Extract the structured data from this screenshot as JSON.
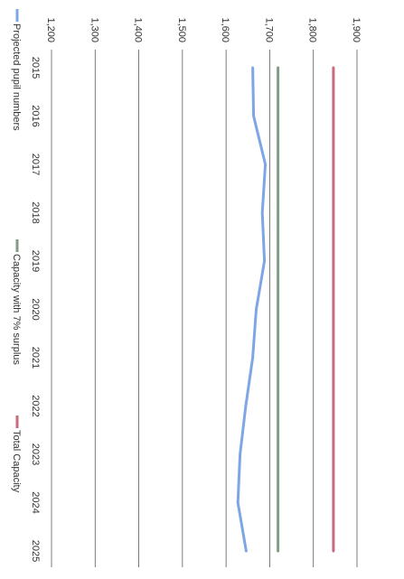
{
  "chart_data": {
    "type": "line",
    "orientation": "rotated-90-clockwise",
    "x": [
      "2015",
      "2016",
      "2017",
      "2018",
      "2019",
      "2020",
      "2021",
      "2022",
      "2023",
      "2024",
      "2025"
    ],
    "y_ticks": [
      "1,200",
      "1,300",
      "1,400",
      "1,500",
      "1,600",
      "1,700",
      "1,800",
      "1,900"
    ],
    "ylim": [
      1200,
      1900
    ],
    "grid": true,
    "legend_position": "bottom",
    "series": [
      {
        "name": "Projected pupil numbers",
        "color": "#7ea6e6",
        "values": [
          1661,
          1663,
          1690,
          1683,
          1688,
          1669,
          1661,
          1645,
          1632,
          1627,
          1646
        ]
      },
      {
        "name": "Capacity with 7% surplus",
        "color": "#7f9f84",
        "values": [
          1719,
          1719,
          1719,
          1719,
          1719,
          1719,
          1719,
          1719,
          1719,
          1719,
          1719
        ]
      },
      {
        "name": "Total Capacity",
        "color": "#c96a7e",
        "values": [
          1846,
          1846,
          1846,
          1846,
          1846,
          1846,
          1846,
          1846,
          1846,
          1846,
          1846
        ]
      }
    ]
  }
}
